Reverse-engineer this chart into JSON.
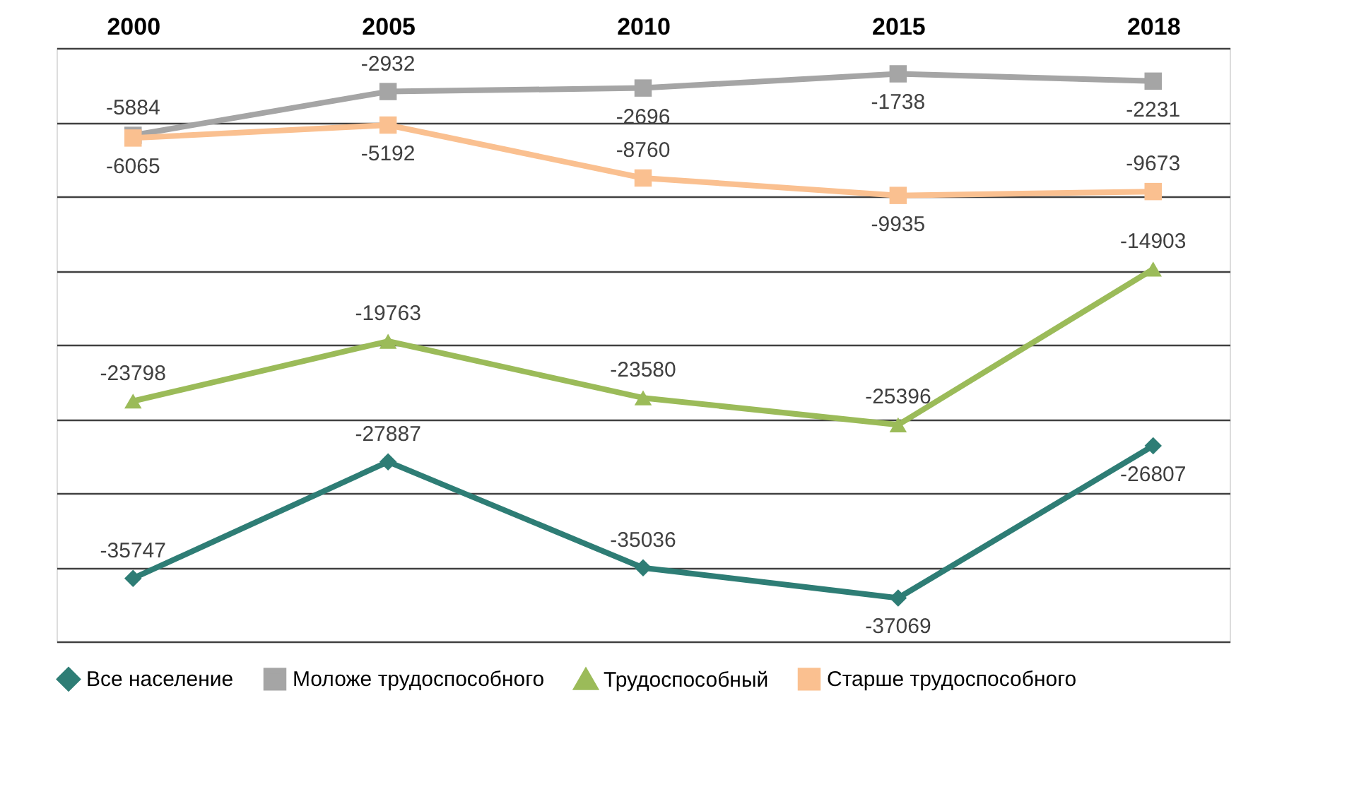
{
  "chart_data": {
    "type": "line",
    "categories": [
      "2000",
      "2005",
      "2010",
      "2015",
      "2018"
    ],
    "series": [
      {
        "name": "Все население",
        "color": "#2e7d75",
        "marker": "diamond",
        "values": [
          -35747,
          -27887,
          -35036,
          -37069,
          -26807
        ]
      },
      {
        "name": "Моложе трудоспособного",
        "color": "#a5a5a5",
        "marker": "square",
        "values": [
          -5884,
          -2932,
          -2696,
          -1738,
          -2231
        ]
      },
      {
        "name": "Трудоспособный",
        "color": "#9bbb59",
        "marker": "triangle",
        "values": [
          -23798,
          -19763,
          -23580,
          -25396,
          -14903
        ]
      },
      {
        "name": "Старше трудоспособного",
        "color": "#fac090",
        "marker": "square",
        "values": [
          -6065,
          -5192,
          -8760,
          -9935,
          -9673
        ]
      }
    ],
    "ylim": [
      -40000,
      0
    ],
    "yticks": [
      -40000,
      -35000,
      -30000,
      -25000,
      -20000,
      -15000,
      -10000,
      -5000,
      0
    ],
    "tick_labels": "x",
    "grid": "y",
    "legend": "bottom",
    "data_labels": true,
    "line_style": "solid"
  }
}
